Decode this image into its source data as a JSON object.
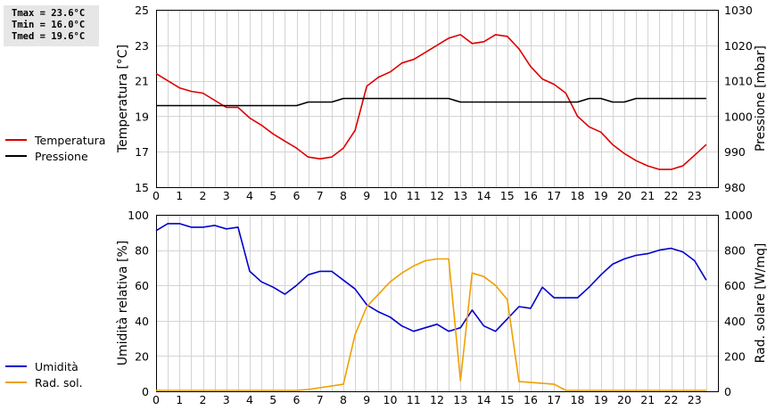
{
  "stats": {
    "tmax": "Tmax = 23.6°C",
    "tmin": "Tmin = 16.0°C",
    "tmed": "Tmed = 19.6°C"
  },
  "chart_data": [
    {
      "type": "line",
      "x_ticks": [
        "0",
        "1",
        "2",
        "3",
        "4",
        "5",
        "6",
        "7",
        "8",
        "9",
        "10",
        "11",
        "12",
        "13",
        "14",
        "15",
        "16",
        "17",
        "18",
        "19",
        "20",
        "21",
        "22",
        "23"
      ],
      "xlim": [
        0,
        24
      ],
      "ylabel_left": "Temperatura [°C]",
      "ylabel_right": "Pressione [mbar]",
      "yticks_left": [
        "15",
        "17",
        "19",
        "21",
        "23",
        "25"
      ],
      "yticks_right": [
        "980",
        "990",
        "1000",
        "1010",
        "1020",
        "1030"
      ],
      "ylim_left": [
        15,
        25
      ],
      "ylim_right": [
        980,
        1030
      ],
      "grid": true,
      "legend_position": "left",
      "series": [
        {
          "name": "Temperatura",
          "axis": "left",
          "color": "#dd0000",
          "x": [
            0,
            0.5,
            1,
            1.5,
            2,
            2.5,
            3,
            3.5,
            4,
            4.5,
            5,
            5.5,
            6,
            6.5,
            7,
            7.5,
            8,
            8.5,
            9,
            9.5,
            10,
            10.5,
            11,
            11.5,
            12,
            12.5,
            13,
            13.5,
            14,
            14.5,
            15,
            15.5,
            16,
            16.5,
            17,
            17.5,
            18,
            18.5,
            19,
            19.5,
            20,
            20.5,
            21,
            21.5,
            22,
            22.5,
            23,
            23.5
          ],
          "y": [
            21.4,
            21.0,
            20.6,
            20.4,
            20.3,
            19.9,
            19.5,
            19.5,
            18.9,
            18.5,
            18.0,
            17.6,
            17.2,
            16.7,
            16.6,
            16.7,
            17.2,
            18.2,
            20.7,
            21.2,
            21.5,
            22.0,
            22.2,
            22.6,
            23.0,
            23.4,
            23.6,
            23.1,
            23.2,
            23.6,
            23.5,
            22.8,
            21.8,
            21.1,
            20.8,
            20.3,
            19.0,
            18.4,
            18.1,
            17.4,
            16.9,
            16.5,
            16.2,
            16.0,
            16.0,
            16.2,
            16.8,
            17.4
          ]
        },
        {
          "name": "Pressione",
          "axis": "right",
          "color": "#000000",
          "x": [
            0,
            6,
            6.5,
            7.5,
            8,
            12.5,
            13,
            17.5,
            18,
            18.5,
            19,
            19.5,
            20,
            20.5,
            21,
            23.5
          ],
          "y": [
            1003,
            1003,
            1004,
            1004,
            1005,
            1005,
            1004,
            1004,
            1004,
            1005,
            1005,
            1004,
            1004,
            1005,
            1005,
            1005
          ]
        }
      ]
    },
    {
      "type": "line",
      "x_ticks": [
        "0",
        "1",
        "2",
        "3",
        "4",
        "5",
        "6",
        "7",
        "8",
        "9",
        "10",
        "11",
        "12",
        "13",
        "14",
        "15",
        "16",
        "17",
        "18",
        "19",
        "20",
        "21",
        "22",
        "23"
      ],
      "xlim": [
        0,
        24
      ],
      "ylabel_left": "Umidità relativa [%]",
      "ylabel_right": "Rad. solare [W/mq]",
      "yticks_left": [
        "0",
        "20",
        "40",
        "60",
        "80",
        "100"
      ],
      "yticks_right": [
        "0",
        "200",
        "400",
        "600",
        "800",
        "1000"
      ],
      "ylim_left": [
        0,
        100
      ],
      "ylim_right": [
        0,
        1000
      ],
      "grid": true,
      "legend_position": "left",
      "series": [
        {
          "name": "Umidità",
          "axis": "left",
          "color": "#0000cc",
          "x": [
            0,
            0.5,
            1,
            1.5,
            2,
            2.5,
            3,
            3.5,
            4,
            4.5,
            5,
            5.5,
            6,
            6.5,
            7,
            7.5,
            8,
            8.5,
            9,
            9.5,
            10,
            10.5,
            11,
            11.5,
            12,
            12.5,
            13,
            13.5,
            14,
            14.5,
            15,
            15.5,
            16,
            16.5,
            17,
            17.5,
            18,
            18.5,
            19,
            19.5,
            20,
            20.5,
            21,
            21.5,
            22,
            22.5,
            23,
            23.5
          ],
          "y": [
            91,
            95,
            95,
            93,
            93,
            94,
            92,
            93,
            68,
            62,
            59,
            55,
            60,
            66,
            68,
            68,
            63,
            58,
            49,
            45,
            42,
            37,
            34,
            36,
            38,
            34,
            36,
            46,
            37,
            34,
            41,
            48,
            47,
            59,
            53,
            53,
            53,
            59,
            66,
            72,
            75,
            77,
            78,
            80,
            81,
            79,
            74,
            63
          ]
        },
        {
          "name": "Rad. sol.",
          "axis": "right",
          "color": "#f0a000",
          "x": [
            0,
            6,
            6.5,
            7,
            7.5,
            8,
            8.5,
            9,
            9.5,
            10,
            10.5,
            11,
            11.5,
            12,
            12.5,
            13,
            13.5,
            14,
            14.5,
            15,
            15.5,
            16,
            16.5,
            17,
            17.5,
            23.5
          ],
          "y": [
            5,
            5,
            10,
            20,
            30,
            40,
            320,
            480,
            550,
            620,
            670,
            710,
            740,
            750,
            750,
            60,
            670,
            650,
            600,
            520,
            55,
            50,
            45,
            40,
            5,
            5
          ]
        }
      ]
    }
  ]
}
